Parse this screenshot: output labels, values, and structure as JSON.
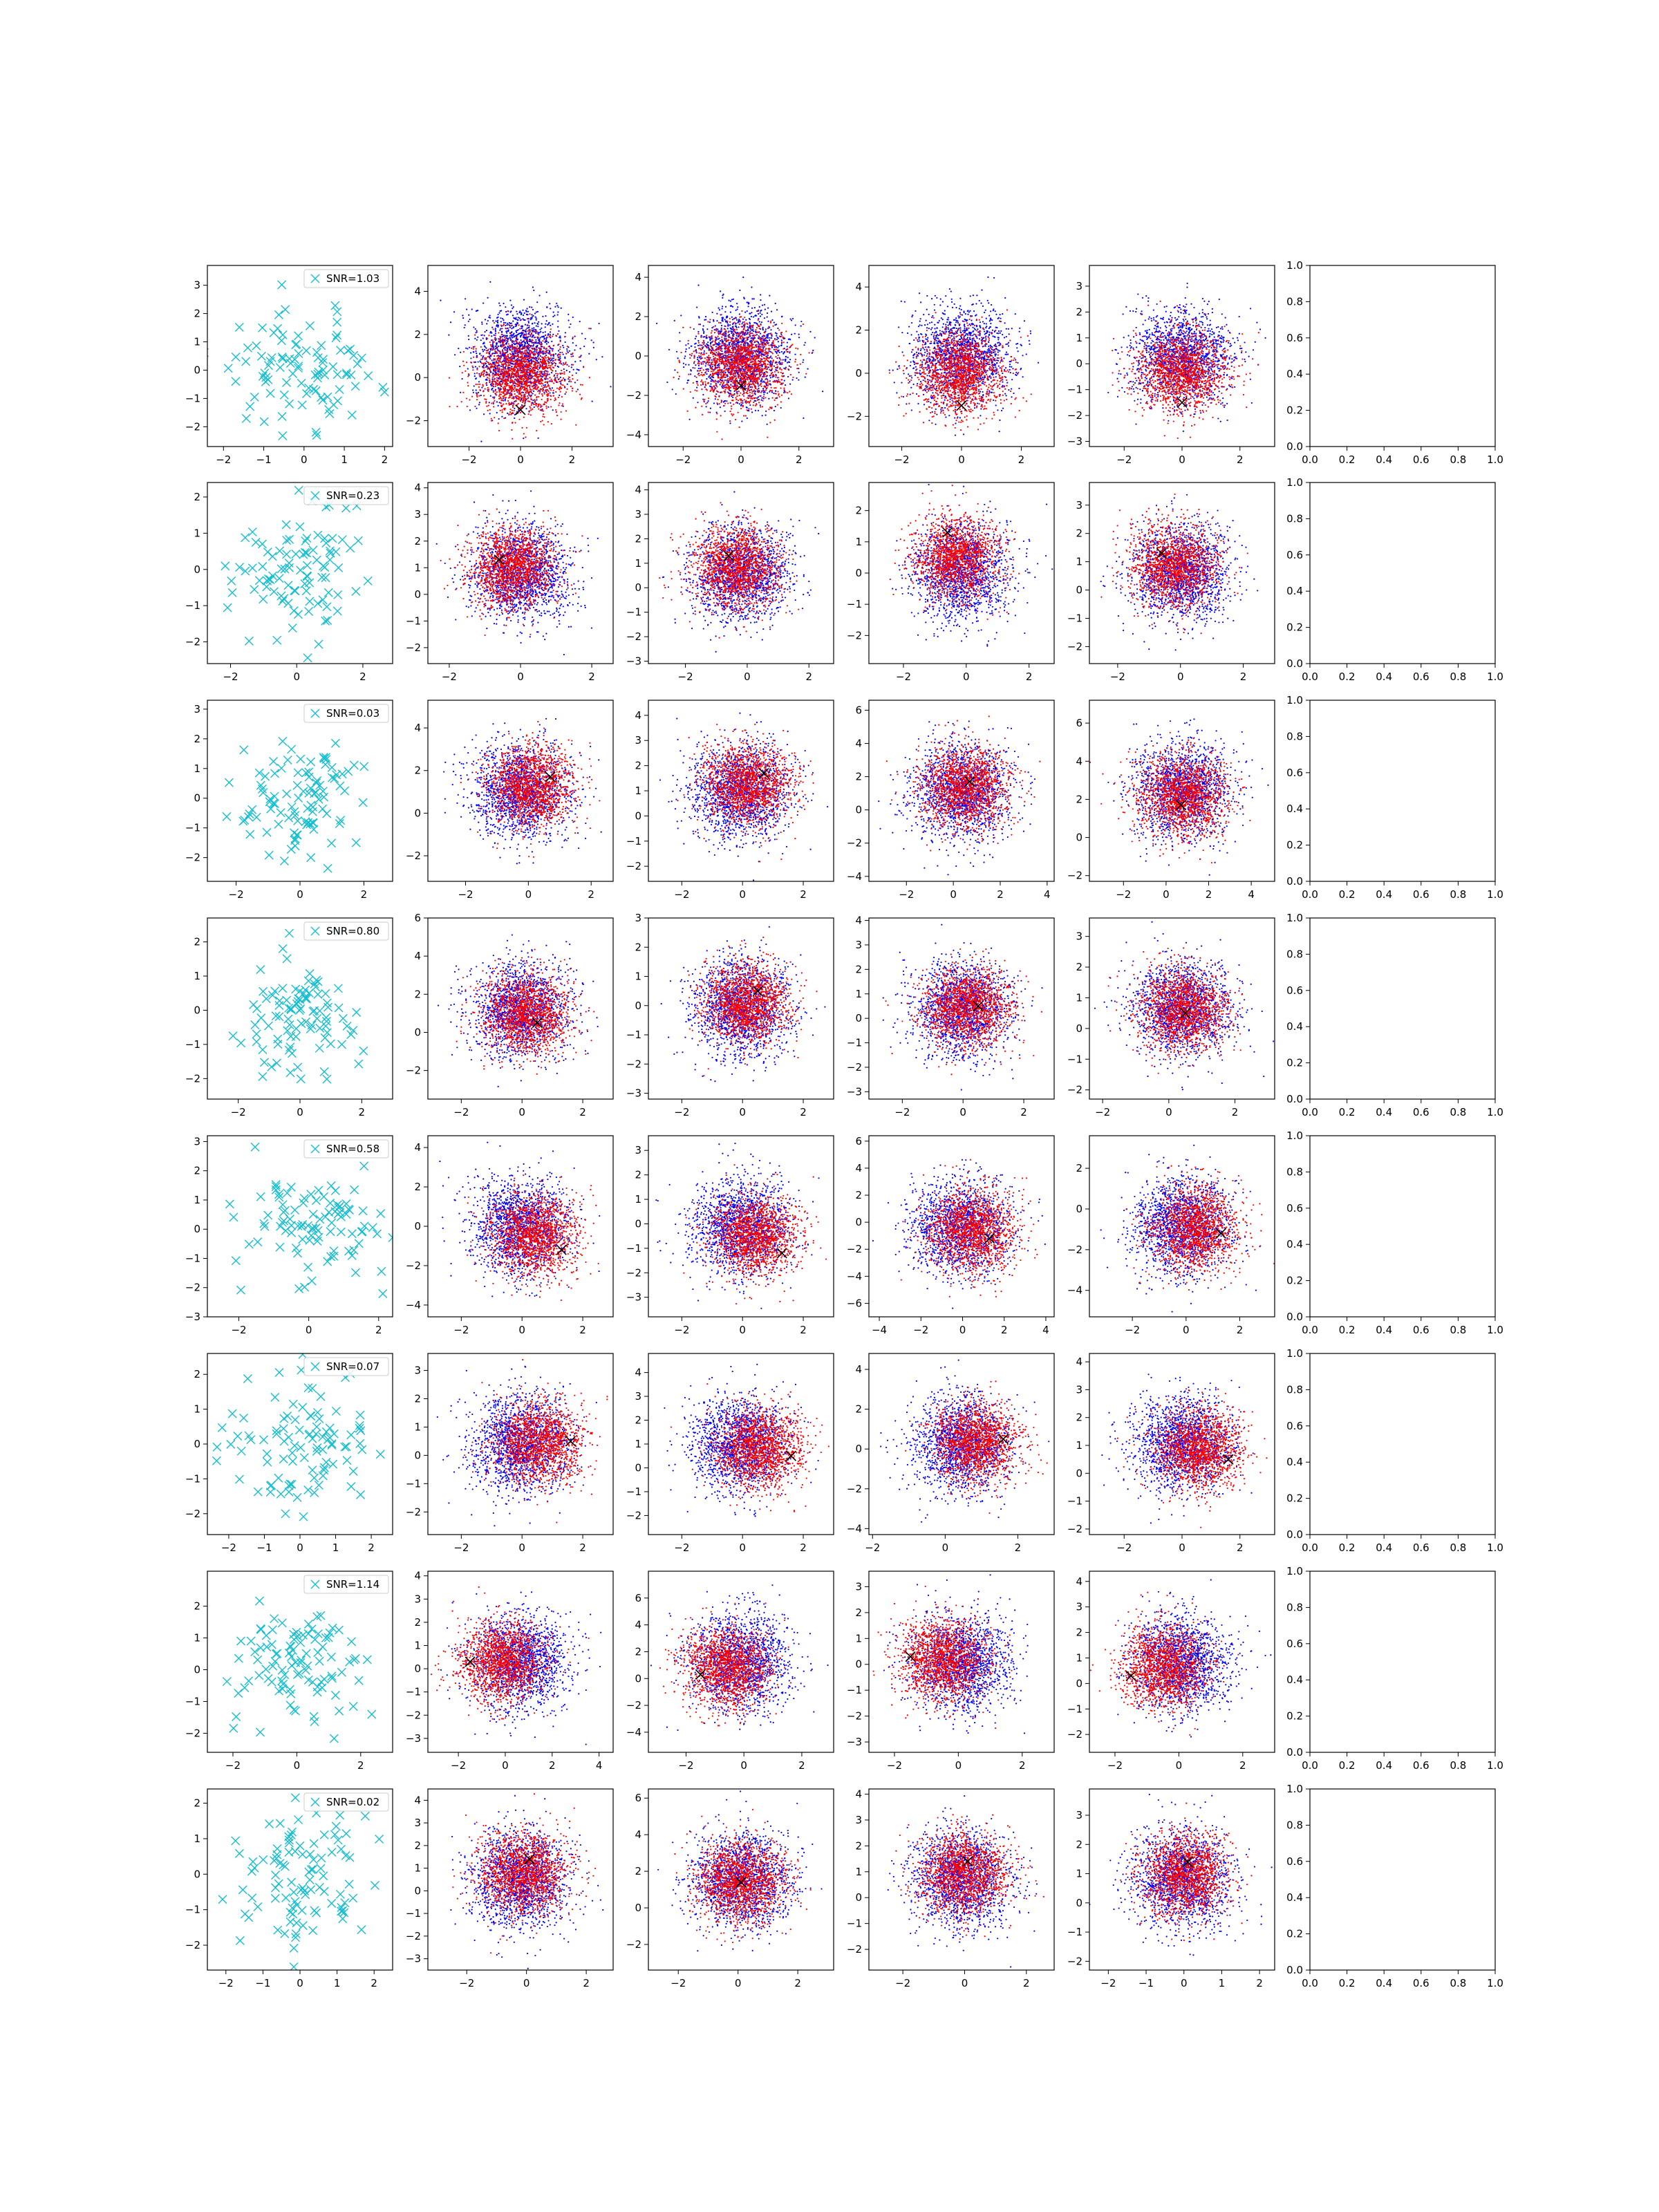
{
  "figure": {
    "colors": {
      "noise_marker": "#17becf",
      "class_a": "#0000ff",
      "class_b": "#ff0000",
      "true_point": "#000000",
      "axes": "#000000",
      "legend_border": "#cccccc"
    }
  },
  "chart_data": [
    {
      "row": 1,
      "col": 1,
      "type": "scatter",
      "legend": "SNR=1.03",
      "xticks": [
        -2,
        -1,
        0,
        1,
        2
      ],
      "yticks": [
        -2,
        -1,
        0,
        1,
        2,
        3
      ],
      "xlim": [
        -2.4,
        2.2
      ],
      "ylim": [
        -2.7,
        3.7
      ]
    },
    {
      "row": 1,
      "col": 2,
      "type": "scatter",
      "xticks": [
        -2,
        0,
        2
      ],
      "yticks": [
        -2,
        0,
        2,
        4
      ],
      "xlim": [
        -3.6,
        3.6
      ],
      "ylim": [
        -3.2,
        5.2
      ],
      "true_point": [
        0,
        -1.5
      ]
    },
    {
      "row": 1,
      "col": 3,
      "type": "scatter",
      "xticks": [
        -2,
        0,
        2
      ],
      "yticks": [
        -4,
        -2,
        0,
        2,
        4
      ],
      "xlim": [
        -3.2,
        3.2
      ],
      "ylim": [
        -4.6,
        4.6
      ],
      "true_point": [
        0,
        -1.5
      ]
    },
    {
      "row": 1,
      "col": 4,
      "type": "scatter",
      "xticks": [
        -2,
        0,
        2
      ],
      "yticks": [
        -2,
        0,
        2,
        4
      ],
      "xlim": [
        -3.1,
        3.1
      ],
      "ylim": [
        -3.4,
        5.0
      ],
      "true_point": [
        0,
        -1.5
      ]
    },
    {
      "row": 1,
      "col": 5,
      "type": "scatter",
      "xticks": [
        -2,
        0,
        2
      ],
      "yticks": [
        -3,
        -2,
        -1,
        0,
        1,
        2,
        3
      ],
      "xlim": [
        -3.2,
        3.2
      ],
      "ylim": [
        -3.2,
        3.8
      ],
      "true_point": [
        0,
        -1.5
      ]
    },
    {
      "row": 1,
      "col": 6,
      "type": "empty",
      "xticks": [
        "0.0",
        "0.2",
        "0.4",
        "0.6",
        "0.8",
        "1.0"
      ],
      "yticks": [
        "0.0",
        "0.2",
        "0.4",
        "0.6",
        "0.8",
        "1.0"
      ],
      "xlim": [
        0,
        1
      ],
      "ylim": [
        0,
        1
      ]
    },
    {
      "row": 2,
      "col": 1,
      "type": "scatter",
      "legend": "SNR=0.23",
      "xticks": [
        -2,
        0,
        2
      ],
      "yticks": [
        -2,
        -1,
        0,
        1,
        2
      ],
      "xlim": [
        -2.7,
        2.9
      ],
      "ylim": [
        -2.6,
        2.4
      ]
    },
    {
      "row": 2,
      "col": 2,
      "type": "scatter",
      "xticks": [
        -2,
        0,
        2
      ],
      "yticks": [
        -2,
        -1,
        0,
        1,
        2,
        3,
        4
      ],
      "xlim": [
        -2.6,
        2.6
      ],
      "ylim": [
        -2.6,
        4.2
      ],
      "true_point": [
        -0.6,
        1.3
      ]
    },
    {
      "row": 2,
      "col": 3,
      "type": "scatter",
      "xticks": [
        -2,
        0,
        2
      ],
      "yticks": [
        -3,
        -2,
        -1,
        0,
        1,
        2,
        3,
        4
      ],
      "xlim": [
        -3.2,
        2.8
      ],
      "ylim": [
        -3.1,
        4.3
      ],
      "true_point": [
        -0.6,
        1.3
      ]
    },
    {
      "row": 2,
      "col": 4,
      "type": "scatter",
      "xticks": [
        -2,
        0,
        2
      ],
      "yticks": [
        -2,
        -1,
        0,
        1,
        2
      ],
      "xlim": [
        -3.1,
        2.8
      ],
      "ylim": [
        -2.9,
        2.9
      ],
      "true_point": [
        -0.6,
        1.3
      ]
    },
    {
      "row": 2,
      "col": 5,
      "type": "scatter",
      "xticks": [
        -2,
        0,
        2
      ],
      "yticks": [
        -2,
        -1,
        0,
        1,
        2,
        3
      ],
      "xlim": [
        -2.9,
        3.0
      ],
      "ylim": [
        -2.6,
        3.8
      ],
      "true_point": [
        -0.6,
        1.3
      ]
    },
    {
      "row": 2,
      "col": 6,
      "type": "empty",
      "xticks": [
        "0.0",
        "0.2",
        "0.4",
        "0.6",
        "0.8",
        "1.0"
      ],
      "yticks": [
        "0.0",
        "0.2",
        "0.4",
        "0.6",
        "0.8",
        "1.0"
      ],
      "xlim": [
        0,
        1
      ],
      "ylim": [
        0,
        1
      ]
    },
    {
      "row": 3,
      "col": 1,
      "type": "scatter",
      "legend": "SNR=0.03",
      "xticks": [
        -2,
        0,
        2
      ],
      "yticks": [
        -2,
        -1,
        0,
        1,
        2,
        3
      ],
      "xlim": [
        -2.9,
        2.9
      ],
      "ylim": [
        -2.8,
        3.3
      ]
    },
    {
      "row": 3,
      "col": 2,
      "type": "scatter",
      "xticks": [
        -2,
        0,
        2
      ],
      "yticks": [
        -2,
        0,
        2,
        4
      ],
      "xlim": [
        -3.2,
        2.7
      ],
      "ylim": [
        -3.2,
        5.3
      ],
      "true_point": [
        0.7,
        1.7
      ]
    },
    {
      "row": 3,
      "col": 3,
      "type": "scatter",
      "xticks": [
        -2,
        0,
        2
      ],
      "yticks": [
        -2,
        -1,
        0,
        1,
        2,
        3,
        4
      ],
      "xlim": [
        -3.1,
        3.0
      ],
      "ylim": [
        -2.6,
        4.6
      ],
      "true_point": [
        0.7,
        1.7
      ]
    },
    {
      "row": 3,
      "col": 4,
      "type": "scatter",
      "xticks": [
        -2,
        0,
        2,
        4
      ],
      "yticks": [
        -4,
        -2,
        0,
        2,
        4,
        6
      ],
      "xlim": [
        -3.6,
        4.3
      ],
      "ylim": [
        -4.3,
        6.6
      ],
      "true_point": [
        0.7,
        1.7
      ]
    },
    {
      "row": 3,
      "col": 5,
      "type": "scatter",
      "xticks": [
        -2,
        0,
        2,
        4
      ],
      "yticks": [
        -2,
        0,
        2,
        4,
        6
      ],
      "xlim": [
        -3.6,
        5.1
      ],
      "ylim": [
        -2.3,
        7.2
      ],
      "true_point": [
        0.7,
        1.7
      ]
    },
    {
      "row": 3,
      "col": 6,
      "type": "empty",
      "xticks": [
        "0.0",
        "0.2",
        "0.4",
        "0.6",
        "0.8",
        "1.0"
      ],
      "yticks": [
        "0.0",
        "0.2",
        "0.4",
        "0.6",
        "0.8",
        "1.0"
      ],
      "xlim": [
        0,
        1
      ],
      "ylim": [
        0,
        1
      ]
    },
    {
      "row": 4,
      "col": 1,
      "type": "scatter",
      "legend": "SNR=0.80",
      "xticks": [
        -2,
        0,
        2
      ],
      "yticks": [
        -2,
        -1,
        0,
        1,
        2
      ],
      "xlim": [
        -3.0,
        3.0
      ],
      "ylim": [
        -2.6,
        2.7
      ]
    },
    {
      "row": 4,
      "col": 2,
      "type": "scatter",
      "xticks": [
        -2,
        0,
        2
      ],
      "yticks": [
        -2,
        0,
        2,
        4,
        6
      ],
      "xlim": [
        -3.1,
        3.0
      ],
      "ylim": [
        -3.5,
        6.0
      ],
      "true_point": [
        0.5,
        0.5
      ]
    },
    {
      "row": 4,
      "col": 3,
      "type": "scatter",
      "xticks": [
        -2,
        0,
        2
      ],
      "yticks": [
        -3,
        -2,
        -1,
        0,
        1,
        2,
        3
      ],
      "xlim": [
        -3.1,
        3.0
      ],
      "ylim": [
        -3.2,
        3.0
      ],
      "true_point": [
        0.5,
        0.5
      ]
    },
    {
      "row": 4,
      "col": 4,
      "type": "scatter",
      "xticks": [
        -2,
        0,
        2
      ],
      "yticks": [
        -3,
        -2,
        -1,
        0,
        1,
        2,
        3,
        4
      ],
      "xlim": [
        -3.1,
        3.0
      ],
      "ylim": [
        -3.3,
        4.1
      ],
      "true_point": [
        0.5,
        0.5
      ]
    },
    {
      "row": 4,
      "col": 5,
      "type": "scatter",
      "xticks": [
        -2,
        0,
        2
      ],
      "yticks": [
        -2,
        -1,
        0,
        1,
        2,
        3
      ],
      "xlim": [
        -2.4,
        3.2
      ],
      "ylim": [
        -2.3,
        3.6
      ],
      "true_point": [
        0.5,
        0.5
      ]
    },
    {
      "row": 4,
      "col": 6,
      "type": "empty",
      "xticks": [
        "0.0",
        "0.2",
        "0.4",
        "0.6",
        "0.8",
        "1.0"
      ],
      "yticks": [
        "0.0",
        "0.2",
        "0.4",
        "0.6",
        "0.8",
        "1.0"
      ],
      "xlim": [
        0,
        1
      ],
      "ylim": [
        0,
        1
      ]
    },
    {
      "row": 5,
      "col": 1,
      "type": "scatter",
      "legend": "SNR=0.58",
      "xticks": [
        -2,
        0,
        2
      ],
      "yticks": [
        -3,
        -2,
        -1,
        0,
        1,
        2,
        3
      ],
      "xlim": [
        -2.9,
        2.4
      ],
      "ylim": [
        -3.0,
        3.2
      ]
    },
    {
      "row": 5,
      "col": 2,
      "type": "scatter",
      "xticks": [
        -2,
        0,
        2
      ],
      "yticks": [
        -4,
        -2,
        0,
        2,
        4
      ],
      "xlim": [
        -3.1,
        3.0
      ],
      "ylim": [
        -4.6,
        4.6
      ],
      "true_point": [
        1.3,
        -1.2
      ]
    },
    {
      "row": 5,
      "col": 3,
      "type": "scatter",
      "xticks": [
        -2,
        0,
        2
      ],
      "yticks": [
        -3,
        -2,
        -1,
        0,
        1,
        2,
        3
      ],
      "xlim": [
        -3.1,
        3.0
      ],
      "ylim": [
        -3.8,
        3.6
      ],
      "true_point": [
        1.3,
        -1.2
      ]
    },
    {
      "row": 5,
      "col": 4,
      "type": "scatter",
      "xticks": [
        -4,
        -2,
        0,
        2,
        4
      ],
      "yticks": [
        -6,
        -4,
        -2,
        0,
        2,
        4,
        6
      ],
      "xlim": [
        -4.5,
        4.4
      ],
      "ylim": [
        -7.0,
        6.4
      ],
      "true_point": [
        1.3,
        -1.2
      ]
    },
    {
      "row": 5,
      "col": 5,
      "type": "scatter",
      "xticks": [
        -2,
        0,
        2
      ],
      "yticks": [
        -4,
        -2,
        0,
        2
      ],
      "xlim": [
        -3.6,
        3.3
      ],
      "ylim": [
        -5.3,
        3.6
      ],
      "true_point": [
        1.3,
        -1.2
      ]
    },
    {
      "row": 5,
      "col": 6,
      "type": "empty",
      "xticks": [
        "0.0",
        "0.2",
        "0.4",
        "0.6",
        "0.8",
        "1.0"
      ],
      "yticks": [
        "0.0",
        "0.2",
        "0.4",
        "0.6",
        "0.8",
        "1.0"
      ],
      "xlim": [
        0,
        1
      ],
      "ylim": [
        0,
        1
      ]
    },
    {
      "row": 6,
      "col": 1,
      "type": "scatter",
      "legend": "SNR=0.07",
      "xticks": [
        -2,
        -1,
        0,
        1,
        2
      ],
      "yticks": [
        -2,
        -1,
        0,
        1,
        2
      ],
      "xlim": [
        -2.6,
        2.6
      ],
      "ylim": [
        -2.6,
        2.6
      ]
    },
    {
      "row": 6,
      "col": 2,
      "type": "scatter",
      "xticks": [
        -2,
        0,
        2
      ],
      "yticks": [
        -2,
        -1,
        0,
        1,
        2,
        3
      ],
      "xlim": [
        -3.1,
        3.0
      ],
      "ylim": [
        -2.8,
        3.6
      ],
      "true_point": [
        1.6,
        0.5
      ]
    },
    {
      "row": 6,
      "col": 3,
      "type": "scatter",
      "xticks": [
        -2,
        0,
        2
      ],
      "yticks": [
        -2,
        -1,
        0,
        1,
        2,
        3,
        4
      ],
      "xlim": [
        -3.1,
        3.0
      ],
      "ylim": [
        -2.8,
        4.8
      ],
      "true_point": [
        1.6,
        0.5
      ]
    },
    {
      "row": 6,
      "col": 4,
      "type": "scatter",
      "xticks": [
        -2,
        0,
        2
      ],
      "yticks": [
        -4,
        -2,
        0,
        2,
        4
      ],
      "xlim": [
        -2.1,
        3.0
      ],
      "ylim": [
        -4.3,
        4.8
      ],
      "true_point": [
        1.6,
        0.5
      ]
    },
    {
      "row": 6,
      "col": 5,
      "type": "scatter",
      "xticks": [
        -2,
        0,
        2
      ],
      "yticks": [
        -2,
        -1,
        0,
        1,
        2,
        3,
        4
      ],
      "xlim": [
        -3.2,
        3.2
      ],
      "ylim": [
        -2.2,
        4.3
      ],
      "true_point": [
        1.6,
        0.5
      ]
    },
    {
      "row": 6,
      "col": 6,
      "type": "empty",
      "xticks": [
        "0.0",
        "0.2",
        "0.4",
        "0.6",
        "0.8",
        "1.0"
      ],
      "yticks": [
        "0.0",
        "0.2",
        "0.4",
        "0.6",
        "0.8",
        "1.0"
      ],
      "xlim": [
        0,
        1
      ],
      "ylim": [
        0,
        1
      ]
    },
    {
      "row": 7,
      "col": 1,
      "type": "scatter",
      "legend": "SNR=1.14",
      "xticks": [
        -2,
        0,
        2
      ],
      "yticks": [
        -2,
        -1,
        0,
        1,
        2
      ],
      "xlim": [
        -2.8,
        3.0
      ],
      "ylim": [
        -2.6,
        3.1
      ]
    },
    {
      "row": 7,
      "col": 2,
      "type": "scatter",
      "xticks": [
        -2,
        0,
        2,
        4
      ],
      "yticks": [
        -3,
        -2,
        -1,
        0,
        1,
        2,
        3,
        4
      ],
      "xlim": [
        -3.3,
        4.6
      ],
      "ylim": [
        -3.6,
        4.2
      ],
      "true_point": [
        -1.5,
        0.3
      ]
    },
    {
      "row": 7,
      "col": 3,
      "type": "scatter",
      "xticks": [
        -2,
        0,
        2
      ],
      "yticks": [
        -4,
        -2,
        0,
        2,
        4,
        6
      ],
      "xlim": [
        -3.3,
        3.1
      ],
      "ylim": [
        -5.5,
        8.0
      ],
      "true_point": [
        -1.5,
        0.3
      ]
    },
    {
      "row": 7,
      "col": 4,
      "type": "scatter",
      "xticks": [
        -2,
        0,
        2
      ],
      "yticks": [
        -3,
        -2,
        -1,
        0,
        1,
        2,
        3
      ],
      "xlim": [
        -2.8,
        3.0
      ],
      "ylim": [
        -3.4,
        3.6
      ],
      "true_point": [
        -1.5,
        0.3
      ]
    },
    {
      "row": 7,
      "col": 5,
      "type": "scatter",
      "xticks": [
        -2,
        0,
        2
      ],
      "yticks": [
        -2,
        -1,
        0,
        1,
        2,
        3,
        4
      ],
      "xlim": [
        -2.8,
        3.0
      ],
      "ylim": [
        -2.7,
        4.4
      ],
      "true_point": [
        -1.5,
        0.3
      ]
    },
    {
      "row": 7,
      "col": 6,
      "type": "empty",
      "xticks": [
        "0.0",
        "0.2",
        "0.4",
        "0.6",
        "0.8",
        "1.0"
      ],
      "yticks": [
        "0.0",
        "0.2",
        "0.4",
        "0.6",
        "0.8",
        "1.0"
      ],
      "xlim": [
        0,
        1
      ],
      "ylim": [
        0,
        1
      ]
    },
    {
      "row": 8,
      "col": 1,
      "type": "scatter",
      "legend": "SNR=0.02",
      "xticks": [
        -2,
        -1,
        0,
        1,
        2
      ],
      "yticks": [
        -2,
        -1,
        0,
        1,
        2
      ],
      "xlim": [
        -2.5,
        2.5
      ],
      "ylim": [
        -2.7,
        2.4
      ]
    },
    {
      "row": 8,
      "col": 2,
      "type": "scatter",
      "xticks": [
        -2,
        0,
        2
      ],
      "yticks": [
        -3,
        -2,
        -1,
        0,
        1,
        2,
        3,
        4
      ],
      "xlim": [
        -3.3,
        2.9
      ],
      "ylim": [
        -3.5,
        4.5
      ],
      "true_point": [
        0.1,
        1.4
      ]
    },
    {
      "row": 8,
      "col": 3,
      "type": "scatter",
      "xticks": [
        -2,
        0,
        2
      ],
      "yticks": [
        -2,
        0,
        2,
        4,
        6
      ],
      "xlim": [
        -3.0,
        3.2
      ],
      "ylim": [
        -3.4,
        6.5
      ],
      "true_point": [
        0.1,
        1.4
      ]
    },
    {
      "row": 8,
      "col": 4,
      "type": "scatter",
      "xticks": [
        -2,
        0,
        2
      ],
      "yticks": [
        -2,
        -1,
        0,
        1,
        2,
        3,
        4
      ],
      "xlim": [
        -3.1,
        2.9
      ],
      "ylim": [
        -2.8,
        4.2
      ],
      "true_point": [
        0.1,
        1.4
      ]
    },
    {
      "row": 8,
      "col": 5,
      "type": "scatter",
      "xticks": [
        -2,
        -1,
        0,
        1,
        2
      ],
      "yticks": [
        -2,
        -1,
        0,
        1,
        2,
        3
      ],
      "xlim": [
        -2.5,
        2.4
      ],
      "ylim": [
        -2.3,
        3.9
      ],
      "true_point": [
        0.1,
        1.4
      ]
    },
    {
      "row": 8,
      "col": 6,
      "type": "empty",
      "xticks": [
        "0.0",
        "0.2",
        "0.4",
        "0.6",
        "0.8",
        "1.0"
      ],
      "yticks": [
        "0.0",
        "0.2",
        "0.4",
        "0.6",
        "0.8",
        "1.0"
      ],
      "xlim": [
        0,
        1
      ],
      "ylim": [
        0,
        1
      ]
    }
  ]
}
